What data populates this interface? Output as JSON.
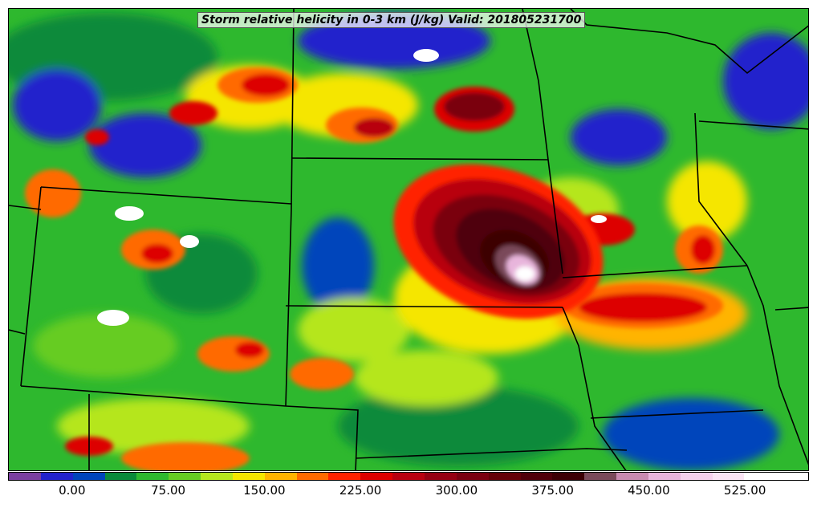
{
  "title": "Storm relative helicity in 0-3 km (J/kg) Valid: 201805231700",
  "colorbar": {
    "min": -50,
    "max": 575,
    "step": 25,
    "colors": [
      "#7b3fa0",
      "#2222cc",
      "#0044bb",
      "#0a8a3a",
      "#2eb82e",
      "#66cc22",
      "#b5e61d",
      "#f5e600",
      "#ffb400",
      "#ff6a00",
      "#ff2200",
      "#dd0000",
      "#b80010",
      "#950012",
      "#7a0010",
      "#640008",
      "#50000a",
      "#3c0005",
      "#7a4a5a",
      "#c88ab0",
      "#e8b5dc",
      "#f5d0ec",
      "#fae4f4",
      "#ffffff",
      "#ffffff"
    ],
    "tick_labels": [
      {
        "value": 0,
        "label": "0.00"
      },
      {
        "value": 75,
        "label": "75.00"
      },
      {
        "value": 150,
        "label": "150.00"
      },
      {
        "value": 225,
        "label": "225.00"
      },
      {
        "value": 300,
        "label": "300.00"
      },
      {
        "value": 375,
        "label": "375.00"
      },
      {
        "value": 450,
        "label": "450.00"
      },
      {
        "value": 525,
        "label": "525.00"
      }
    ]
  },
  "map": {
    "background_color": "#2eb82e",
    "boundary_color": "#000000"
  }
}
